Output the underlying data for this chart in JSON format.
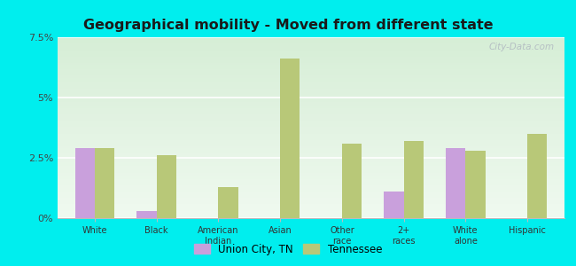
{
  "title": "Geographical mobility - Moved from different state",
  "categories": [
    "White",
    "Black",
    "American\nIndian",
    "Asian",
    "Other\nrace",
    "2+\nraces",
    "White\nalone",
    "Hispanic"
  ],
  "union_city": [
    2.9,
    0.3,
    0.0,
    0.0,
    0.0,
    1.1,
    2.9,
    0.0
  ],
  "tennessee": [
    2.9,
    2.6,
    1.3,
    6.6,
    3.1,
    3.2,
    2.8,
    3.5
  ],
  "union_city_color": "#c9a0dc",
  "tennessee_color": "#b8c878",
  "background_top": "#d4edd4",
  "background_bottom": "#f0faf0",
  "outer_background": "#00eeee",
  "ylim": [
    0,
    7.5
  ],
  "yticks": [
    0,
    2.5,
    5.0,
    7.5
  ],
  "ytick_labels": [
    "0%",
    "2.5%",
    "5%",
    "7.5%"
  ],
  "legend_union_city": "Union City, TN",
  "legend_tennessee": "Tennessee",
  "bar_width": 0.32,
  "watermark": "City-Data.com"
}
